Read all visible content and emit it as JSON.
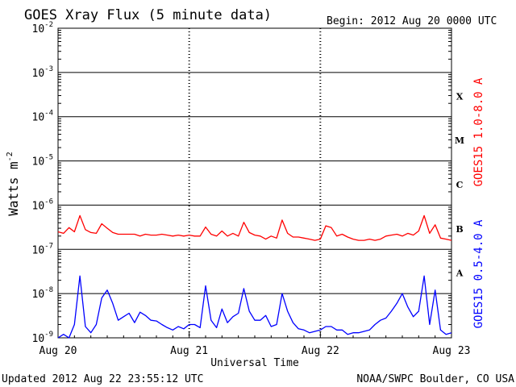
{
  "title": "GOES Xray Flux (5 minute data)",
  "begin_label": "Begin:  2012 Aug 20 0000 UTC",
  "updated_label": "Updated 2012 Aug 22 23:55:12 UTC",
  "credit_label": "NOAA/SWPC Boulder, CO USA",
  "chart_data": {
    "type": "line",
    "title": "GOES Xray Flux (5 minute data)",
    "xlabel": "Universal Time",
    "ylabel_base": "Watts m",
    "ylabel_exp": "-2",
    "y_scale": "log",
    "ylim": [
      1e-09,
      0.01
    ],
    "y_ticks": [
      {
        "base": "10",
        "exp": "-2"
      },
      {
        "base": "10",
        "exp": "-3"
      },
      {
        "base": "10",
        "exp": "-4"
      },
      {
        "base": "10",
        "exp": "-5"
      },
      {
        "base": "10",
        "exp": "-6"
      },
      {
        "base": "10",
        "exp": "-7"
      },
      {
        "base": "10",
        "exp": "-8"
      },
      {
        "base": "10",
        "exp": "-9"
      }
    ],
    "x_ticks": [
      "Aug 20",
      "Aug 21",
      "Aug 22",
      "Aug 23"
    ],
    "flare_classes": [
      "X",
      "M",
      "C",
      "B",
      "A"
    ],
    "series": [
      {
        "name": "GOES15 1.0-8.0 A",
        "color": "#ff0000",
        "x_hours": [
          0,
          1,
          2,
          3,
          4,
          5,
          6,
          7,
          8,
          9,
          10,
          11,
          12,
          13,
          14,
          15,
          16,
          17,
          18,
          19,
          20,
          21,
          22,
          23,
          24,
          25,
          26,
          27,
          28,
          29,
          30,
          31,
          32,
          33,
          34,
          35,
          36,
          37,
          38,
          39,
          40,
          41,
          42,
          43,
          44,
          45,
          46,
          47,
          48,
          49,
          50,
          51,
          52,
          53,
          54,
          55,
          56,
          57,
          58,
          59,
          60,
          61,
          62,
          63,
          64,
          65,
          66,
          67,
          68,
          69,
          70,
          71,
          72
        ],
        "y": [
          2.5e-07,
          2.3e-07,
          3.1e-07,
          2.5e-07,
          5.8e-07,
          2.8e-07,
          2.4e-07,
          2.3e-07,
          3.8e-07,
          3e-07,
          2.4e-07,
          2.2e-07,
          2.2e-07,
          2.2e-07,
          2.2e-07,
          2e-07,
          2.2e-07,
          2.1e-07,
          2.1e-07,
          2.2e-07,
          2.1e-07,
          2e-07,
          2.1e-07,
          2e-07,
          2.1e-07,
          2e-07,
          2e-07,
          3.2e-07,
          2.2e-07,
          2e-07,
          2.6e-07,
          2e-07,
          2.3e-07,
          2e-07,
          4.1e-07,
          2.4e-07,
          2.1e-07,
          2e-07,
          1.7e-07,
          2e-07,
          1.8e-07,
          4.6e-07,
          2.3e-07,
          1.9e-07,
          1.9e-07,
          1.8e-07,
          1.7e-07,
          1.6e-07,
          1.7e-07,
          3.4e-07,
          3.1e-07,
          2e-07,
          2.2e-07,
          1.9e-07,
          1.7e-07,
          1.6e-07,
          1.6e-07,
          1.7e-07,
          1.6e-07,
          1.7e-07,
          2e-07,
          2.1e-07,
          2.2e-07,
          2e-07,
          2.3e-07,
          2.1e-07,
          2.6e-07,
          5.8e-07,
          2.3e-07,
          3.6e-07,
          1.8e-07,
          1.7e-07,
          1.6e-07
        ]
      },
      {
        "name": "GOES15 0.5-4.0 A",
        "color": "#0000ff",
        "x_hours": [
          0,
          1,
          2,
          3,
          4,
          5,
          6,
          7,
          8,
          9,
          10,
          11,
          12,
          13,
          14,
          15,
          16,
          17,
          18,
          19,
          20,
          21,
          22,
          23,
          24,
          25,
          26,
          27,
          28,
          29,
          30,
          31,
          32,
          33,
          34,
          35,
          36,
          37,
          38,
          39,
          40,
          41,
          42,
          43,
          44,
          45,
          46,
          47,
          48,
          49,
          50,
          51,
          52,
          53,
          54,
          55,
          56,
          57,
          58,
          59,
          60,
          61,
          62,
          63,
          64,
          65,
          66,
          67,
          68,
          69,
          70,
          71,
          72
        ],
        "y": [
          1e-09,
          1.2e-09,
          1e-09,
          2e-09,
          2.5e-08,
          1.8e-09,
          1.3e-09,
          2e-09,
          8e-09,
          1.2e-08,
          6e-09,
          2.5e-09,
          3e-09,
          3.6e-09,
          2.2e-09,
          3.8e-09,
          3.2e-09,
          2.5e-09,
          2.4e-09,
          2e-09,
          1.7e-09,
          1.5e-09,
          1.8e-09,
          1.6e-09,
          2e-09,
          2e-09,
          1.7e-09,
          1.5e-08,
          2.5e-09,
          1.7e-09,
          4.5e-09,
          2.2e-09,
          3e-09,
          3.6e-09,
          1.3e-08,
          4e-09,
          2.5e-09,
          2.5e-09,
          3.2e-09,
          1.8e-09,
          2e-09,
          1e-08,
          4e-09,
          2.2e-09,
          1.6e-09,
          1.5e-09,
          1.3e-09,
          1.4e-09,
          1.5e-09,
          1.8e-09,
          1.8e-09,
          1.5e-09,
          1.5e-09,
          1.2e-09,
          1.3e-09,
          1.3e-09,
          1.4e-09,
          1.5e-09,
          2e-09,
          2.5e-09,
          2.8e-09,
          4e-09,
          6e-09,
          1e-08,
          5e-09,
          3e-09,
          4e-09,
          2.5e-08,
          2e-09,
          1.2e-08,
          1.5e-09,
          1.2e-09,
          1.3e-09
        ]
      }
    ]
  }
}
